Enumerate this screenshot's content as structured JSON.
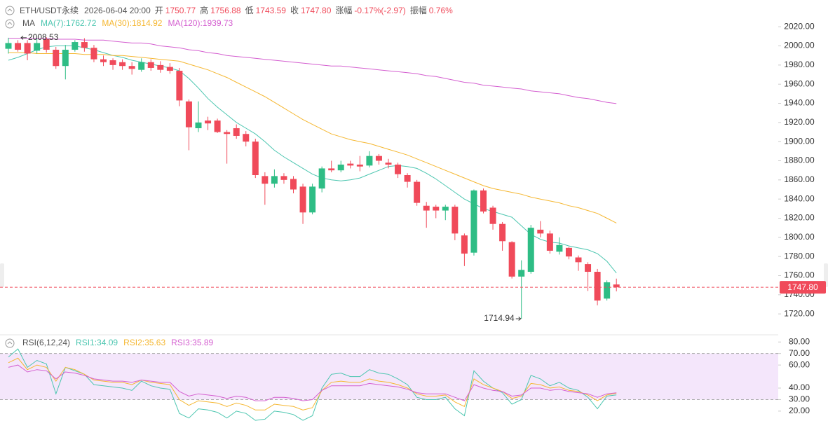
{
  "header": {
    "symbol": "ETH/USDT永续",
    "datetime": "2026-06-04 20:00",
    "items": [
      {
        "label": "开",
        "value": "1750.77"
      },
      {
        "label": "高",
        "value": "1756.88"
      },
      {
        "label": "低",
        "value": "1743.59"
      },
      {
        "label": "收",
        "value": "1747.80"
      },
      {
        "label": "涨幅",
        "value": "-0.17%(-2.97)"
      },
      {
        "label": "振幅",
        "value": "0.76%"
      }
    ]
  },
  "chart_data": [
    {
      "type": "candlestick",
      "indicator": "MA",
      "up_color": "#2ebd85",
      "down_color": "#f04a5a",
      "open": [
        1997,
        2003,
        2003,
        1995,
        2007,
        1996,
        1979,
        1996,
        2004,
        1998,
        1986,
        1985,
        1983,
        1979,
        1975,
        1983,
        1980,
        1978,
        1974,
        1942,
        1914,
        1922,
        1922,
        1910,
        1914,
        1908,
        1900,
        1864,
        1856,
        1864,
        1861,
        1853,
        1826,
        1851,
        1872,
        1870,
        1877,
        1876,
        1875,
        1885,
        1878,
        1876,
        1865,
        1858,
        1833,
        1832,
        1828,
        1832,
        1802,
        1784,
        1849,
        1831,
        1814,
        1795,
        1759,
        1764,
        1808,
        1804,
        1785,
        1789,
        1779,
        1772,
        1764,
        1736,
        1750.77
      ],
      "high": [
        2008.53,
        2006,
        2006,
        2008,
        2009,
        1999,
        2001,
        2006,
        2008,
        2001,
        1990,
        1987,
        1986,
        1983,
        1987,
        1986,
        1984,
        1982,
        1977,
        1944,
        1942,
        1926,
        1924,
        1912,
        1918,
        1911,
        1903,
        1868,
        1871,
        1867,
        1864,
        1856,
        1856,
        1874,
        1880,
        1880,
        1880,
        1885,
        1890,
        1887,
        1882,
        1878,
        1867,
        1860,
        1837,
        1834,
        1834,
        1834,
        1804,
        1850,
        1851,
        1833,
        1816,
        1796,
        1776,
        1813,
        1817,
        1807,
        1800,
        1790,
        1781,
        1774,
        1767,
        1755,
        1756.88
      ],
      "low": [
        1992,
        1994,
        1985,
        1992,
        1993,
        1976,
        1965,
        1994,
        1994,
        1983,
        1979,
        1975,
        1975,
        1970,
        1973,
        1974,
        1972,
        1971,
        1937,
        1891,
        1910,
        1912,
        1909,
        1877,
        1903,
        1895,
        1862,
        1834,
        1852,
        1856,
        1846,
        1814,
        1824,
        1847,
        1868,
        1868,
        1872,
        1869,
        1873,
        1876,
        1872,
        1862,
        1852,
        1833,
        1810,
        1820,
        1818,
        1797,
        1770,
        1781,
        1825,
        1808,
        1786,
        1757,
        1714.94,
        1762,
        1800,
        1783,
        1782,
        1777,
        1765,
        1744,
        1729,
        1734,
        1743.59
      ],
      "close": [
        2003,
        1996,
        1992,
        2003,
        1996,
        1979,
        1996,
        2004,
        1998,
        1986,
        1983,
        1980,
        1979,
        1976,
        1983,
        1977,
        1975,
        1974,
        1943,
        1915,
        1920,
        1919,
        1910,
        1908,
        1906,
        1900,
        1865,
        1856,
        1864,
        1860,
        1850,
        1826,
        1853,
        1872,
        1870,
        1876,
        1875,
        1874,
        1885,
        1880,
        1876,
        1866,
        1858,
        1836,
        1828,
        1828,
        1832,
        1804,
        1783,
        1849,
        1827,
        1814,
        1796,
        1759,
        1766,
        1810,
        1804,
        1786,
        1792,
        1780,
        1774,
        1764,
        1734,
        1753,
        1747.8
      ],
      "series": [
        {
          "name": "MA(7):1762.72",
          "color": "#4cc6b0",
          "values": [
            1985,
            1988,
            1992,
            1996,
            1999,
            2000,
            2000,
            2000,
            1998,
            1996,
            1993,
            1990,
            1988,
            1985,
            1983,
            1981,
            1979,
            1977,
            1974,
            1966,
            1956,
            1945,
            1936,
            1928,
            1920,
            1914,
            1908,
            1900,
            1891,
            1884,
            1878,
            1872,
            1866,
            1862,
            1860,
            1859,
            1860,
            1862,
            1866,
            1870,
            1874,
            1875,
            1874,
            1872,
            1867,
            1861,
            1854,
            1847,
            1840,
            1835,
            1830,
            1827,
            1824,
            1821,
            1812,
            1803,
            1798,
            1795,
            1794,
            1791,
            1789,
            1787,
            1783,
            1775,
            1762.72
          ]
        },
        {
          "name": "MA(30):1814.92",
          "color": "#f5b731",
          "values": [
            1993,
            1993,
            1993,
            1992,
            1992,
            1992,
            1992,
            1992,
            1991,
            1991,
            1991,
            1990,
            1990,
            1989,
            1988,
            1987,
            1986,
            1985,
            1984,
            1981,
            1978,
            1975,
            1971,
            1967,
            1962,
            1957,
            1952,
            1947,
            1941,
            1935,
            1929,
            1923,
            1918,
            1913,
            1908,
            1905,
            1902,
            1900,
            1898,
            1895,
            1892,
            1889,
            1886,
            1882,
            1878,
            1874,
            1870,
            1866,
            1862,
            1858,
            1854,
            1851,
            1849,
            1847,
            1845,
            1842,
            1840,
            1838,
            1836,
            1833,
            1831,
            1828,
            1825,
            1820,
            1814.92
          ]
        },
        {
          "name": "MA(120):1939.73",
          "color": "#d45fd0",
          "values": [
            2008,
            2008,
            2008,
            2008,
            2008,
            2007,
            2007,
            2007,
            2006,
            2006,
            2006,
            2005,
            2004,
            2003,
            2003,
            2002,
            2000,
            1999,
            1998,
            1996,
            1995,
            1993,
            1992,
            1990,
            1989,
            1988,
            1987,
            1986,
            1985,
            1984,
            1983,
            1982,
            1981,
            1980,
            1979,
            1979,
            1978,
            1977,
            1976,
            1975,
            1974,
            1973,
            1972,
            1971,
            1969,
            1968,
            1966,
            1964,
            1962,
            1961,
            1959,
            1958,
            1957,
            1956,
            1955,
            1953,
            1952,
            1951,
            1950,
            1948,
            1946,
            1945,
            1943,
            1941,
            1939.73
          ]
        }
      ],
      "ylim": [
        1704,
        2026
      ],
      "yticks": [
        {
          "value": 1720,
          "label": "1720.00"
        },
        {
          "value": 1740,
          "label": "1740.00"
        },
        {
          "value": 1760,
          "label": "1760.00"
        },
        {
          "value": 1780,
          "label": "1780.00"
        },
        {
          "value": 1800,
          "label": "1800.00"
        },
        {
          "value": 1820,
          "label": "1820.00"
        },
        {
          "value": 1840,
          "label": "1840.00"
        },
        {
          "value": 1860,
          "label": "1860.00"
        },
        {
          "value": 1880,
          "label": "1880.00"
        },
        {
          "value": 1900,
          "label": "1900.00"
        },
        {
          "value": 1920,
          "label": "1920.00"
        },
        {
          "value": 1940,
          "label": "1940.00"
        },
        {
          "value": 1960,
          "label": "1960.00"
        },
        {
          "value": 1980,
          "label": "1980.00"
        },
        {
          "value": 2000,
          "label": "2000.00"
        },
        {
          "value": 2020,
          "label": "2020.00"
        }
      ],
      "last_price": 1747.8,
      "last_price_label": "1747.80",
      "annotations": [
        {
          "label": "2008.53",
          "value": 2008.53,
          "index": 0,
          "side": "right"
        },
        {
          "label": "1714.94",
          "value": 1714.94,
          "index": 54,
          "side": "left"
        }
      ]
    },
    {
      "type": "line",
      "indicator": "RSI(6,12,24)",
      "series": [
        {
          "name": "RSI1:34.09",
          "color": "#4cc6b0",
          "values": [
            67,
            74,
            58,
            64,
            61,
            35,
            58,
            55,
            52,
            43,
            42,
            41,
            40,
            38,
            46,
            42,
            40,
            39,
            18,
            14,
            22,
            21,
            19,
            14,
            20,
            18,
            12,
            13,
            20,
            19,
            17,
            12,
            16,
            40,
            52,
            53,
            50,
            50,
            56,
            53,
            52,
            48,
            43,
            32,
            30,
            30,
            32,
            22,
            16,
            55,
            46,
            40,
            36,
            26,
            30,
            51,
            48,
            42,
            45,
            40,
            38,
            32,
            22,
            33,
            34.09
          ]
        },
        {
          "name": "RSI2:35.63",
          "color": "#f5b731",
          "values": [
            62,
            66,
            56,
            60,
            58,
            46,
            58,
            56,
            52,
            47,
            46,
            45,
            45,
            43,
            47,
            45,
            44,
            43,
            30,
            25,
            29,
            28,
            27,
            24,
            27,
            25,
            21,
            21,
            26,
            25,
            24,
            21,
            23,
            38,
            45,
            46,
            45,
            45,
            48,
            46,
            45,
            43,
            40,
            35,
            33,
            33,
            34,
            28,
            24,
            48,
            43,
            40,
            37,
            31,
            33,
            44,
            43,
            40,
            41,
            38,
            37,
            34,
            29,
            34,
            35.63
          ]
        },
        {
          "name": "RSI3:35.89",
          "color": "#d45fd0",
          "values": [
            58,
            60,
            54,
            56,
            55,
            48,
            54,
            53,
            51,
            48,
            47,
            46,
            46,
            45,
            47,
            46,
            45,
            45,
            37,
            33,
            35,
            34,
            33,
            31,
            33,
            32,
            29,
            29,
            32,
            32,
            31,
            29,
            30,
            38,
            42,
            42,
            42,
            42,
            44,
            43,
            42,
            41,
            39,
            36,
            35,
            35,
            35,
            32,
            29,
            43,
            40,
            38,
            37,
            33,
            34,
            40,
            40,
            38,
            39,
            37,
            36,
            35,
            32,
            35,
            35.89
          ]
        }
      ],
      "ylim": [
        9,
        85
      ],
      "yticks": [
        {
          "value": 20,
          "label": "20.00"
        },
        {
          "value": 30,
          "label": "30.00"
        },
        {
          "value": 40,
          "label": "40.00"
        },
        {
          "value": 60,
          "label": "60.00"
        },
        {
          "value": 70,
          "label": "70.00"
        },
        {
          "value": 80,
          "label": "80.00"
        }
      ],
      "band": [
        30,
        70
      ],
      "band_color": "#f4e6fb"
    }
  ]
}
